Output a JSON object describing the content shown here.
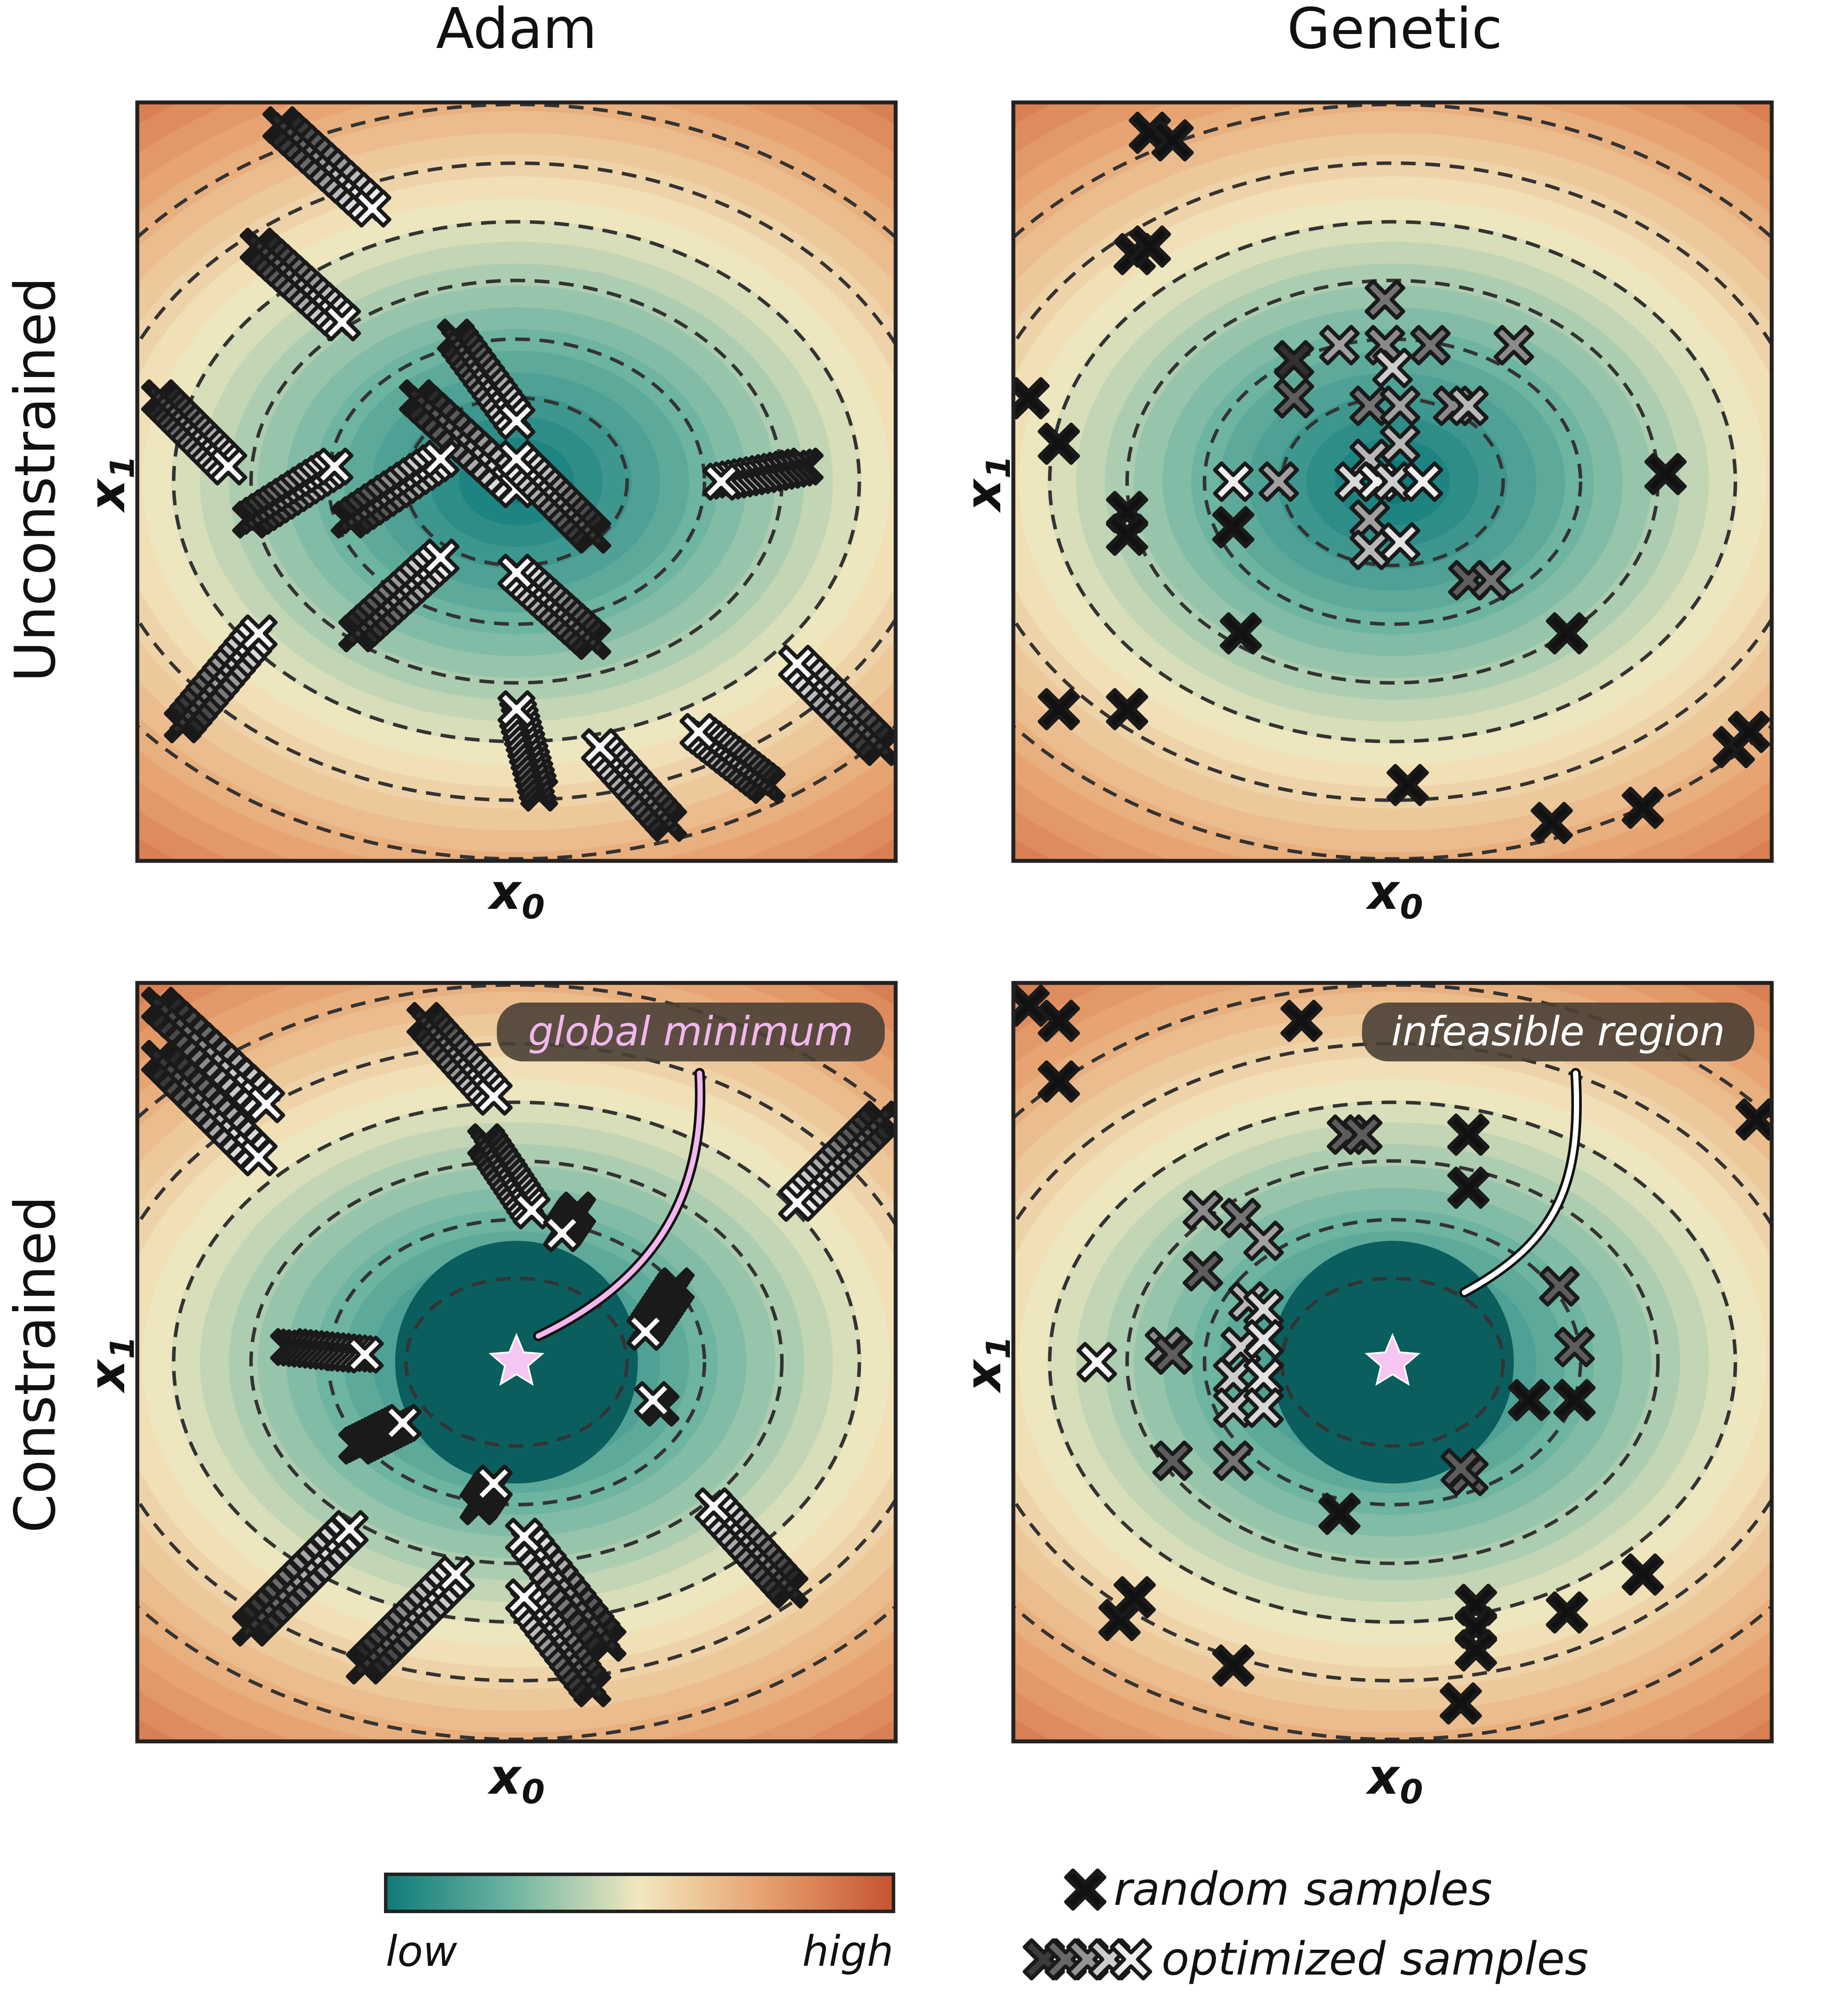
{
  "figure": {
    "column_titles": [
      "Adam",
      "Genetic"
    ],
    "row_titles": [
      "Unconstrained",
      "Constrained"
    ],
    "x_label_main": "x",
    "x_label_sub": "0",
    "y_label_main": "x",
    "y_label_sub": "1"
  },
  "colorbar": {
    "low_label": "low",
    "high_label": "high",
    "colors": [
      "#0e7a7a",
      "#6fb5a2",
      "#f2e8bf",
      "#e6a06d",
      "#c65330"
    ]
  },
  "legend": {
    "random_label": "random samples",
    "optimized_label": "optimized samples"
  },
  "annotations": {
    "global_minimum": "global minimum",
    "infeasible_region": "infeasible region"
  },
  "colors": {
    "star": "#f6c6f2",
    "annot_box": "#4a4036",
    "pink_text": "#f2b7ee",
    "white_text": "#ffffff"
  },
  "chart_data": [
    {
      "type": "scatter",
      "title": "Adam / Unconstrained",
      "xlim": [
        0,
        1
      ],
      "ylim": [
        0,
        1
      ],
      "optimum": [
        0.5,
        0.5
      ],
      "trajectories": [
        [
          [
            0.19,
            0.97
          ],
          [
            0.31,
            0.86
          ]
        ],
        [
          [
            0.16,
            0.81
          ],
          [
            0.27,
            0.71
          ]
        ],
        [
          [
            0.42,
            0.69
          ],
          [
            0.5,
            0.58
          ]
        ],
        [
          [
            0.37,
            0.61
          ],
          [
            0.5,
            0.49
          ]
        ],
        [
          [
            0.03,
            0.61
          ],
          [
            0.12,
            0.52
          ]
        ],
        [
          [
            0.15,
            0.45
          ],
          [
            0.26,
            0.52
          ]
        ],
        [
          [
            0.28,
            0.45
          ],
          [
            0.4,
            0.53
          ]
        ],
        [
          [
            0.29,
            0.3
          ],
          [
            0.4,
            0.4
          ]
        ],
        [
          [
            0.6,
            0.43
          ],
          [
            0.5,
            0.53
          ]
        ],
        [
          [
            0.6,
            0.29
          ],
          [
            0.5,
            0.38
          ]
        ],
        [
          [
            0.88,
            0.52
          ],
          [
            0.77,
            0.5
          ]
        ],
        [
          [
            0.06,
            0.18
          ],
          [
            0.16,
            0.3
          ]
        ],
        [
          [
            0.53,
            0.09
          ],
          [
            0.5,
            0.2
          ]
        ],
        [
          [
            0.7,
            0.05
          ],
          [
            0.61,
            0.15
          ]
        ],
        [
          [
            0.83,
            0.1
          ],
          [
            0.74,
            0.17
          ]
        ],
        [
          [
            0.98,
            0.15
          ],
          [
            0.87,
            0.26
          ]
        ]
      ]
    },
    {
      "type": "scatter",
      "title": "Genetic / Unconstrained",
      "xlim": [
        0,
        1
      ],
      "ylim": [
        0,
        1
      ],
      "random_samples": [
        [
          0.18,
          0.96
        ],
        [
          0.21,
          0.95
        ],
        [
          0.16,
          0.8
        ],
        [
          0.18,
          0.81
        ],
        [
          0.02,
          0.61
        ],
        [
          0.06,
          0.55
        ],
        [
          0.15,
          0.46
        ],
        [
          0.15,
          0.43
        ],
        [
          0.29,
          0.44
        ],
        [
          0.3,
          0.3
        ],
        [
          0.86,
          0.51
        ],
        [
          0.73,
          0.3
        ],
        [
          0.06,
          0.2
        ],
        [
          0.15,
          0.2
        ],
        [
          0.52,
          0.1
        ],
        [
          0.71,
          0.05
        ],
        [
          0.83,
          0.07
        ],
        [
          0.95,
          0.15
        ],
        [
          0.97,
          0.17
        ]
      ],
      "optimized_samples": [
        [
          0.49,
          0.74,
          0.4
        ],
        [
          0.43,
          0.68,
          0.6
        ],
        [
          0.49,
          0.68,
          0.5
        ],
        [
          0.55,
          0.68,
          0.4
        ],
        [
          0.66,
          0.68,
          0.5
        ],
        [
          0.37,
          0.66,
          0.1
        ],
        [
          0.5,
          0.65,
          0.8
        ],
        [
          0.37,
          0.61,
          0.3
        ],
        [
          0.47,
          0.6,
          0.4
        ],
        [
          0.51,
          0.6,
          0.6
        ],
        [
          0.58,
          0.6,
          0.5
        ],
        [
          0.6,
          0.6,
          0.7
        ],
        [
          0.47,
          0.53,
          0.7
        ],
        [
          0.51,
          0.55,
          0.7
        ],
        [
          0.29,
          0.5,
          0.95
        ],
        [
          0.35,
          0.5,
          0.6
        ],
        [
          0.45,
          0.5,
          0.85
        ],
        [
          0.48,
          0.5,
          0.95
        ],
        [
          0.5,
          0.5,
          0.8
        ],
        [
          0.54,
          0.5,
          0.95
        ],
        [
          0.47,
          0.45,
          0.6
        ],
        [
          0.47,
          0.41,
          0.7
        ],
        [
          0.51,
          0.42,
          0.9
        ],
        [
          0.6,
          0.37,
          0.3
        ],
        [
          0.63,
          0.37,
          0.4
        ]
      ]
    },
    {
      "type": "scatter",
      "title": "Adam / Constrained",
      "xlim": [
        0,
        1
      ],
      "ylim": [
        0,
        1
      ],
      "optimum": [
        0.5,
        0.5
      ],
      "feasible_disk": {
        "cx": 0.5,
        "cy": 0.5,
        "r": 0.16
      },
      "trajectories": [
        [
          [
            0.03,
            0.97
          ],
          [
            0.17,
            0.84
          ]
        ],
        [
          [
            0.03,
            0.9
          ],
          [
            0.16,
            0.77
          ]
        ],
        [
          [
            0.38,
            0.95
          ],
          [
            0.47,
            0.85
          ]
        ],
        [
          [
            0.46,
            0.79
          ],
          [
            0.52,
            0.7
          ]
        ],
        [
          [
            0.58,
            0.7
          ],
          [
            0.56,
            0.67
          ]
        ],
        [
          [
            0.98,
            0.82
          ],
          [
            0.87,
            0.71
          ]
        ],
        [
          [
            0.2,
            0.52
          ],
          [
            0.3,
            0.51
          ]
        ],
        [
          [
            0.29,
            0.39
          ],
          [
            0.35,
            0.42
          ]
        ],
        [
          [
            0.45,
            0.31
          ],
          [
            0.47,
            0.34
          ]
        ],
        [
          [
            0.71,
            0.6
          ],
          [
            0.67,
            0.54
          ]
        ],
        [
          [
            0.69,
            0.44
          ],
          [
            0.68,
            0.45
          ]
        ],
        [
          [
            0.15,
            0.15
          ],
          [
            0.28,
            0.28
          ]
        ],
        [
          [
            0.3,
            0.1
          ],
          [
            0.42,
            0.22
          ]
        ],
        [
          [
            0.6,
            0.07
          ],
          [
            0.51,
            0.19
          ]
        ],
        [
          [
            0.62,
            0.13
          ],
          [
            0.51,
            0.27
          ]
        ],
        [
          [
            0.86,
            0.2
          ],
          [
            0.76,
            0.31
          ]
        ]
      ]
    },
    {
      "type": "scatter",
      "title": "Genetic / Constrained",
      "xlim": [
        0,
        1
      ],
      "ylim": [
        0,
        1
      ],
      "optimum": [
        0.5,
        0.5
      ],
      "feasible_disk": {
        "cx": 0.5,
        "cy": 0.5,
        "r": 0.16
      },
      "random_samples": [
        [
          0.02,
          0.97
        ],
        [
          0.06,
          0.95
        ],
        [
          0.06,
          0.87
        ],
        [
          0.38,
          0.95
        ],
        [
          0.98,
          0.82
        ],
        [
          0.6,
          0.8
        ],
        [
          0.6,
          0.73
        ],
        [
          0.68,
          0.45
        ],
        [
          0.74,
          0.45
        ],
        [
          0.43,
          0.3
        ],
        [
          0.14,
          0.16
        ],
        [
          0.16,
          0.19
        ],
        [
          0.29,
          0.1
        ],
        [
          0.61,
          0.18
        ],
        [
          0.61,
          0.15
        ],
        [
          0.61,
          0.12
        ],
        [
          0.59,
          0.05
        ],
        [
          0.73,
          0.17
        ],
        [
          0.83,
          0.22
        ]
      ],
      "optimized_samples": [
        [
          0.44,
          0.8,
          0.3
        ],
        [
          0.46,
          0.8,
          0.3
        ],
        [
          0.6,
          0.35,
          0.3
        ],
        [
          0.25,
          0.7,
          0.5
        ],
        [
          0.3,
          0.69,
          0.4
        ],
        [
          0.33,
          0.66,
          0.6
        ],
        [
          0.25,
          0.62,
          0.3
        ],
        [
          0.31,
          0.58,
          0.7
        ],
        [
          0.3,
          0.52,
          0.8
        ],
        [
          0.33,
          0.57,
          0.85
        ],
        [
          0.33,
          0.53,
          0.9
        ],
        [
          0.29,
          0.48,
          0.8
        ],
        [
          0.29,
          0.44,
          0.8
        ],
        [
          0.33,
          0.48,
          0.9
        ],
        [
          0.33,
          0.44,
          0.85
        ],
        [
          0.2,
          0.52,
          0.5
        ],
        [
          0.21,
          0.51,
          0.3
        ],
        [
          0.11,
          0.5,
          0.98
        ],
        [
          0.21,
          0.37,
          0.3
        ],
        [
          0.29,
          0.37,
          0.4
        ],
        [
          0.72,
          0.6,
          0.3
        ],
        [
          0.74,
          0.52,
          0.3
        ],
        [
          0.59,
          0.36,
          0.3
        ]
      ]
    }
  ]
}
